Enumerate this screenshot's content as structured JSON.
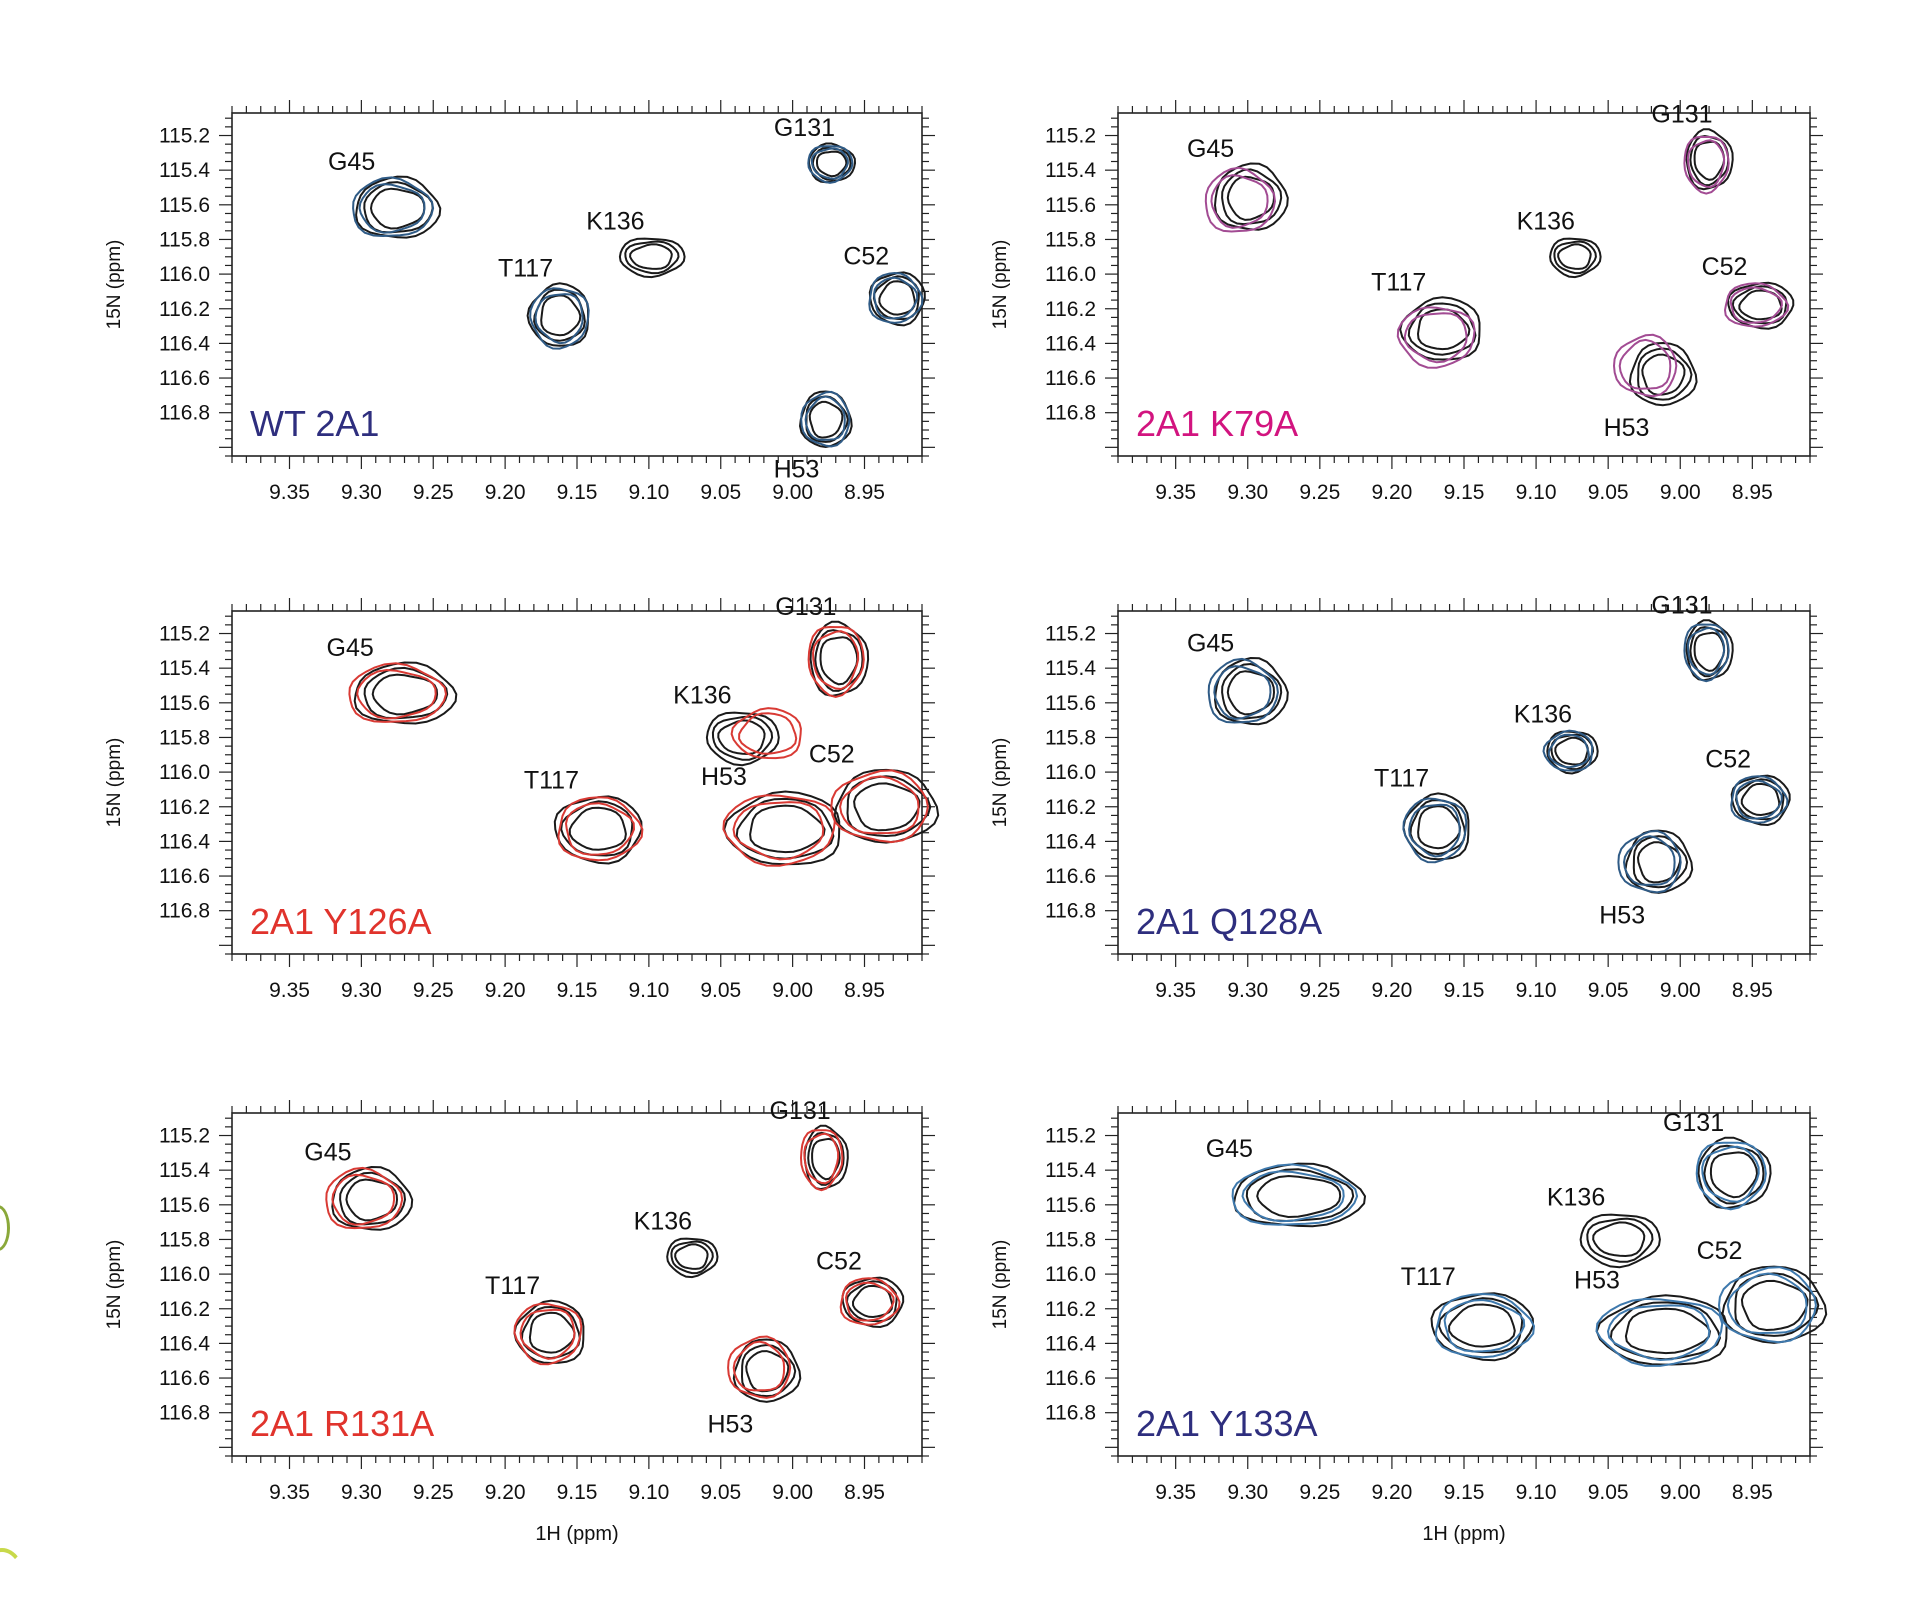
{
  "figure": {
    "colors": {
      "reference": "#1a1a1a",
      "blue": "#2f5b86",
      "magenta": "#a24b93",
      "red": "#d93a34",
      "label_navy": "#2e2e7e",
      "label_magenta": "#d2147f",
      "label_red": "#e0332c"
    }
  },
  "chart_data": [
    {
      "type": "contour",
      "panel_label": "WT 2A1",
      "label_color": "#2e2e7e",
      "overlay_color": "#2f5b86",
      "xlabel": "",
      "ylabel": "15N (ppm)",
      "xlim": [
        9.39,
        8.91
      ],
      "ylim": [
        115.07,
        117.05
      ],
      "x_ticks": [
        "9.35",
        "9.30",
        "9.25",
        "9.20",
        "9.15",
        "9.10",
        "9.05",
        "9.00",
        "8.95"
      ],
      "y_ticks": [
        "115.2",
        "115.4",
        "115.6",
        "115.8",
        "116.0",
        "116.2",
        "116.4",
        "116.6",
        "116.8"
      ],
      "peaks": [
        {
          "name": "G45",
          "x": 9.275,
          "y": 115.62,
          "w": 0.058,
          "h": 0.35,
          "overlay_dx": 0.004,
          "overlay_dy": 0.0,
          "ref_only": false
        },
        {
          "name": "G131",
          "x": 8.973,
          "y": 115.36,
          "w": 0.032,
          "h": 0.22,
          "overlay_dx": 0.001,
          "overlay_dy": 0.0,
          "ref_only": false
        },
        {
          "name": "K136",
          "x": 9.098,
          "y": 115.9,
          "w": 0.045,
          "h": 0.22,
          "overlay_dx": 0.0,
          "overlay_dy": 0.0,
          "ref_only": true
        },
        {
          "name": "C52",
          "x": 8.927,
          "y": 116.14,
          "w": 0.038,
          "h": 0.3,
          "overlay_dx": 0.002,
          "overlay_dy": 0.0,
          "ref_only": false
        },
        {
          "name": "T117",
          "x": 9.162,
          "y": 116.24,
          "w": 0.042,
          "h": 0.36,
          "overlay_dx": 0.0,
          "overlay_dy": 0.01,
          "ref_only": false
        },
        {
          "name": "H53",
          "x": 8.977,
          "y": 116.84,
          "w": 0.035,
          "h": 0.32,
          "overlay_dx": 0.0,
          "overlay_dy": 0.0,
          "ref_only": false
        }
      ]
    },
    {
      "type": "contour",
      "panel_label": "2A1 K79A",
      "label_color": "#d2147f",
      "overlay_color": "#a24b93",
      "xlabel": "",
      "ylabel": "15N (ppm)",
      "xlim": [
        9.39,
        8.91
      ],
      "ylim": [
        115.07,
        117.05
      ],
      "x_ticks": [
        "9.35",
        "9.30",
        "9.25",
        "9.20",
        "9.15",
        "9.10",
        "9.05",
        "9.00",
        "8.95"
      ],
      "y_ticks": [
        "115.2",
        "115.4",
        "115.6",
        "115.8",
        "116.0",
        "116.2",
        "116.4",
        "116.6",
        "116.8"
      ],
      "peaks": [
        {
          "name": "G45",
          "x": 9.298,
          "y": 115.56,
          "w": 0.05,
          "h": 0.38,
          "overlay_dx": 0.008,
          "overlay_dy": 0.02,
          "ref_only": false
        },
        {
          "name": "G131",
          "x": 8.98,
          "y": 115.34,
          "w": 0.032,
          "h": 0.34,
          "overlay_dx": 0.002,
          "overlay_dy": 0.02,
          "ref_only": false
        },
        {
          "name": "K136",
          "x": 9.073,
          "y": 115.9,
          "w": 0.035,
          "h": 0.22,
          "overlay_dx": 0.0,
          "overlay_dy": 0.0,
          "ref_only": true
        },
        {
          "name": "C52",
          "x": 8.944,
          "y": 116.18,
          "w": 0.045,
          "h": 0.26,
          "overlay_dx": 0.004,
          "overlay_dy": 0.0,
          "ref_only": false
        },
        {
          "name": "T117",
          "x": 9.165,
          "y": 116.32,
          "w": 0.055,
          "h": 0.36,
          "overlay_dx": 0.004,
          "overlay_dy": 0.04,
          "ref_only": false
        },
        {
          "name": "H53",
          "x": 9.012,
          "y": 116.58,
          "w": 0.045,
          "h": 0.36,
          "overlay_dx": 0.012,
          "overlay_dy": -0.05,
          "ref_only": false
        }
      ]
    },
    {
      "type": "contour",
      "panel_label": "2A1 Y126A",
      "label_color": "#e0332c",
      "overlay_color": "#d93a34",
      "xlabel": "",
      "ylabel": "15N (ppm)",
      "xlim": [
        9.39,
        8.91
      ],
      "ylim": [
        115.07,
        117.05
      ],
      "x_ticks": [
        "9.35",
        "9.30",
        "9.25",
        "9.20",
        "9.15",
        "9.10",
        "9.05",
        "9.00",
        "8.95"
      ],
      "y_ticks": [
        "115.2",
        "115.4",
        "115.6",
        "115.8",
        "116.0",
        "116.2",
        "116.4",
        "116.6",
        "116.8"
      ],
      "peaks": [
        {
          "name": "G45",
          "x": 9.27,
          "y": 115.55,
          "w": 0.07,
          "h": 0.35,
          "overlay_dx": 0.006,
          "overlay_dy": 0.0,
          "ref_only": false
        },
        {
          "name": "G131",
          "x": 8.968,
          "y": 115.35,
          "w": 0.04,
          "h": 0.42,
          "overlay_dx": 0.002,
          "overlay_dy": 0.0,
          "ref_only": false
        },
        {
          "name": "K136",
          "x": 9.035,
          "y": 115.8,
          "w": 0.05,
          "h": 0.3,
          "overlay_dx": -0.018,
          "overlay_dy": -0.02,
          "ref_only": false
        },
        {
          "name": "T117",
          "x": 9.135,
          "y": 116.33,
          "w": 0.06,
          "h": 0.38,
          "overlay_dx": 0.0,
          "overlay_dy": 0.0,
          "ref_only": false
        },
        {
          "name": "H53",
          "x": 9.005,
          "y": 116.33,
          "w": 0.08,
          "h": 0.42,
          "overlay_dx": 0.004,
          "overlay_dy": 0.0,
          "ref_only": false
        },
        {
          "name": "C52",
          "x": 8.935,
          "y": 116.2,
          "w": 0.07,
          "h": 0.42,
          "overlay_dx": 0.004,
          "overlay_dy": 0.0,
          "ref_only": false
        }
      ]
    },
    {
      "type": "contour",
      "panel_label": "2A1 Q128A",
      "label_color": "#2e2e7e",
      "overlay_color": "#2f5b86",
      "xlabel": "",
      "ylabel": "15N (ppm)",
      "xlim": [
        9.39,
        8.91
      ],
      "ylim": [
        115.07,
        117.05
      ],
      "x_ticks": [
        "9.35",
        "9.30",
        "9.25",
        "9.20",
        "9.15",
        "9.10",
        "9.05",
        "9.00",
        "8.95"
      ],
      "y_ticks": [
        "115.2",
        "115.4",
        "115.6",
        "115.8",
        "116.0",
        "116.2",
        "116.4",
        "116.6",
        "116.8"
      ],
      "peaks": [
        {
          "name": "G45",
          "x": 9.298,
          "y": 115.54,
          "w": 0.05,
          "h": 0.38,
          "overlay_dx": 0.006,
          "overlay_dy": 0.0,
          "ref_only": false
        },
        {
          "name": "G131",
          "x": 8.98,
          "y": 115.3,
          "w": 0.032,
          "h": 0.34,
          "overlay_dx": 0.002,
          "overlay_dy": 0.0,
          "ref_only": false
        },
        {
          "name": "K136",
          "x": 9.075,
          "y": 115.88,
          "w": 0.035,
          "h": 0.24,
          "overlay_dx": 0.002,
          "overlay_dy": 0.0,
          "ref_only": false
        },
        {
          "name": "C52",
          "x": 8.944,
          "y": 116.16,
          "w": 0.04,
          "h": 0.28,
          "overlay_dx": 0.002,
          "overlay_dy": 0.0,
          "ref_only": false
        },
        {
          "name": "T117",
          "x": 9.168,
          "y": 116.32,
          "w": 0.045,
          "h": 0.38,
          "overlay_dx": 0.002,
          "overlay_dy": 0.01,
          "ref_only": false
        },
        {
          "name": "H53",
          "x": 9.015,
          "y": 116.52,
          "w": 0.045,
          "h": 0.36,
          "overlay_dx": 0.006,
          "overlay_dy": 0.0,
          "ref_only": false
        }
      ]
    },
    {
      "type": "contour",
      "panel_label": "2A1 R131A",
      "label_color": "#e0332c",
      "overlay_color": "#d93a34",
      "xlabel": "1H (ppm)",
      "ylabel": "15N (ppm)",
      "xlim": [
        9.39,
        8.91
      ],
      "ylim": [
        115.07,
        117.05
      ],
      "x_ticks": [
        "9.35",
        "9.30",
        "9.25",
        "9.20",
        "9.15",
        "9.10",
        "9.05",
        "9.00",
        "8.95"
      ],
      "y_ticks": [
        "115.2",
        "115.4",
        "115.6",
        "115.8",
        "116.0",
        "116.2",
        "116.4",
        "116.6",
        "116.8"
      ],
      "peaks": [
        {
          "name": "G45",
          "x": 9.293,
          "y": 115.57,
          "w": 0.055,
          "h": 0.36,
          "overlay_dx": 0.006,
          "overlay_dy": 0.0,
          "ref_only": false
        },
        {
          "name": "G131",
          "x": 8.977,
          "y": 115.33,
          "w": 0.03,
          "h": 0.36,
          "overlay_dx": 0.003,
          "overlay_dy": 0.0,
          "ref_only": false
        },
        {
          "name": "K136",
          "x": 9.07,
          "y": 115.9,
          "w": 0.035,
          "h": 0.22,
          "overlay_dx": 0.0,
          "overlay_dy": 0.0,
          "ref_only": true
        },
        {
          "name": "C52",
          "x": 8.944,
          "y": 116.16,
          "w": 0.042,
          "h": 0.28,
          "overlay_dx": 0.003,
          "overlay_dy": 0.0,
          "ref_only": false
        },
        {
          "name": "T117",
          "x": 9.168,
          "y": 116.34,
          "w": 0.048,
          "h": 0.36,
          "overlay_dx": 0.002,
          "overlay_dy": 0.0,
          "ref_only": false
        },
        {
          "name": "H53",
          "x": 9.018,
          "y": 116.56,
          "w": 0.045,
          "h": 0.36,
          "overlay_dx": 0.005,
          "overlay_dy": -0.02,
          "ref_only": false
        }
      ]
    },
    {
      "type": "contour",
      "panel_label": "2A1 Y133A",
      "label_color": "#2e2e7e",
      "overlay_color": "#3e79ad",
      "xlabel": "1H (ppm)",
      "ylabel": "15N (ppm)",
      "xlim": [
        9.39,
        8.91
      ],
      "ylim": [
        115.07,
        117.05
      ],
      "x_ticks": [
        "9.35",
        "9.30",
        "9.25",
        "9.20",
        "9.15",
        "9.10",
        "9.05",
        "9.00",
        "8.95"
      ],
      "y_ticks": [
        "115.2",
        "115.4",
        "115.6",
        "115.8",
        "116.0",
        "116.2",
        "116.4",
        "116.6",
        "116.8"
      ],
      "peaks": [
        {
          "name": "G45",
          "x": 9.265,
          "y": 115.55,
          "w": 0.09,
          "h": 0.36,
          "overlay_dx": 0.004,
          "overlay_dy": 0.0,
          "ref_only": false
        },
        {
          "name": "G131",
          "x": 8.963,
          "y": 115.42,
          "w": 0.05,
          "h": 0.4,
          "overlay_dx": 0.002,
          "overlay_dy": 0.0,
          "ref_only": false
        },
        {
          "name": "K136",
          "x": 9.042,
          "y": 115.8,
          "w": 0.055,
          "h": 0.3,
          "overlay_dx": 0.0,
          "overlay_dy": 0.0,
          "ref_only": true
        },
        {
          "name": "T117",
          "x": 9.137,
          "y": 116.3,
          "w": 0.07,
          "h": 0.38,
          "overlay_dx": 0.0,
          "overlay_dy": 0.0,
          "ref_only": false
        },
        {
          "name": "H53",
          "x": 9.01,
          "y": 116.33,
          "w": 0.09,
          "h": 0.4,
          "overlay_dx": 0.004,
          "overlay_dy": 0.0,
          "ref_only": false
        },
        {
          "name": "C52",
          "x": 8.935,
          "y": 116.18,
          "w": 0.07,
          "h": 0.44,
          "overlay_dx": 0.004,
          "overlay_dy": 0.0,
          "ref_only": false
        }
      ]
    }
  ]
}
